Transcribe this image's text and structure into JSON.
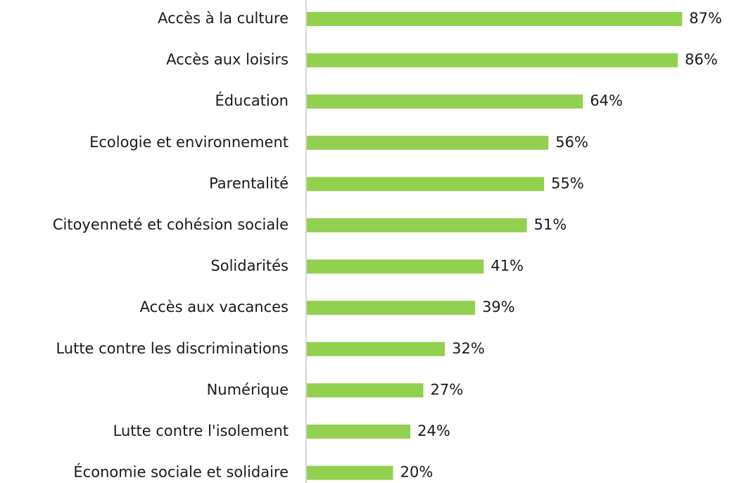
{
  "chart_data": {
    "type": "bar",
    "orientation": "horizontal",
    "categories": [
      "Accès à la culture",
      "Accès aux loisirs",
      "Éducation",
      "Ecologie et environnement",
      "Parentalité",
      "Citoyenneté et cohésion sociale",
      "Solidarités",
      "Accès aux vacances",
      "Lutte contre les discriminations",
      "Numérique",
      "Lutte contre l'isolement",
      "Économie sociale et solidaire"
    ],
    "values": [
      87,
      86,
      64,
      56,
      55,
      51,
      41,
      39,
      32,
      27,
      24,
      20
    ],
    "value_labels": [
      "87%",
      "86%",
      "64%",
      "56%",
      "55%",
      "51%",
      "41%",
      "39%",
      "32%",
      "27%",
      "24%",
      "20%"
    ],
    "color": "#92d050"
  }
}
